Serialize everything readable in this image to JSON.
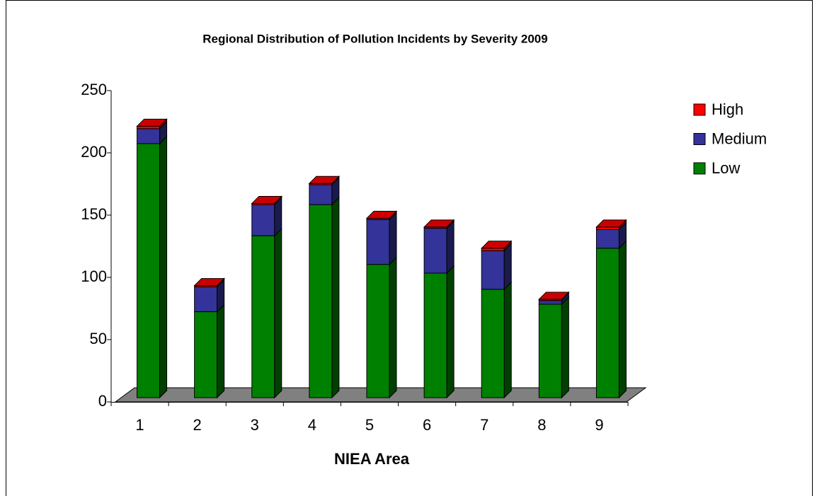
{
  "chart_data": {
    "type": "stacked_bar_3d",
    "title": "Regional Distribution of Pollution Incidents by Severity 2009",
    "x_label": "NIEA Area",
    "categories": [
      "1",
      "2",
      "3",
      "4",
      "5",
      "6",
      "7",
      "8",
      "9"
    ],
    "series": [
      {
        "name": "Low",
        "color": "#008000",
        "values": [
          204,
          69,
          130,
          155,
          107,
          100,
          87,
          75,
          120
        ]
      },
      {
        "name": "Medium",
        "color": "#333399",
        "values": [
          12,
          20,
          25,
          16,
          36,
          36,
          31,
          3,
          15
        ]
      },
      {
        "name": "High",
        "color": "#ff0000",
        "values": [
          2,
          1,
          1,
          1,
          1,
          1,
          2,
          1,
          2
        ]
      }
    ],
    "ylim": [
      0,
      250
    ],
    "yticks": [
      0,
      50,
      100,
      150,
      200,
      250
    ],
    "legend": "right"
  }
}
